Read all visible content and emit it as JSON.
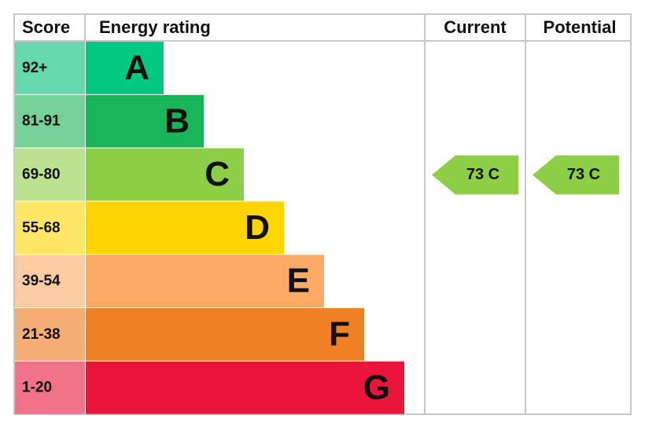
{
  "header": {
    "score": "Score",
    "rating": "Energy rating",
    "current": "Current",
    "potential": "Potential"
  },
  "bands": [
    {
      "score": "92+",
      "letter": "A",
      "color": "#00c781",
      "light": "#66d8b0"
    },
    {
      "score": "81-91",
      "letter": "B",
      "color": "#19b459",
      "light": "#75d197"
    },
    {
      "score": "69-80",
      "letter": "C",
      "color": "#8dce46",
      "light": "#bbe290"
    },
    {
      "score": "55-68",
      "letter": "D",
      "color": "#ffd500",
      "light": "#ffe766"
    },
    {
      "score": "39-54",
      "letter": "E",
      "color": "#fcaa65",
      "light": "#fdcba2"
    },
    {
      "score": "21-38",
      "letter": "F",
      "color": "#ef8023",
      "light": "#f4ad73"
    },
    {
      "score": "1-20",
      "letter": "G",
      "color": "#e9153b",
      "light": "#f27389"
    }
  ],
  "current": {
    "label": "73 C",
    "color": "#8dce46"
  },
  "potential": {
    "label": "73 C",
    "color": "#8dce46"
  }
}
